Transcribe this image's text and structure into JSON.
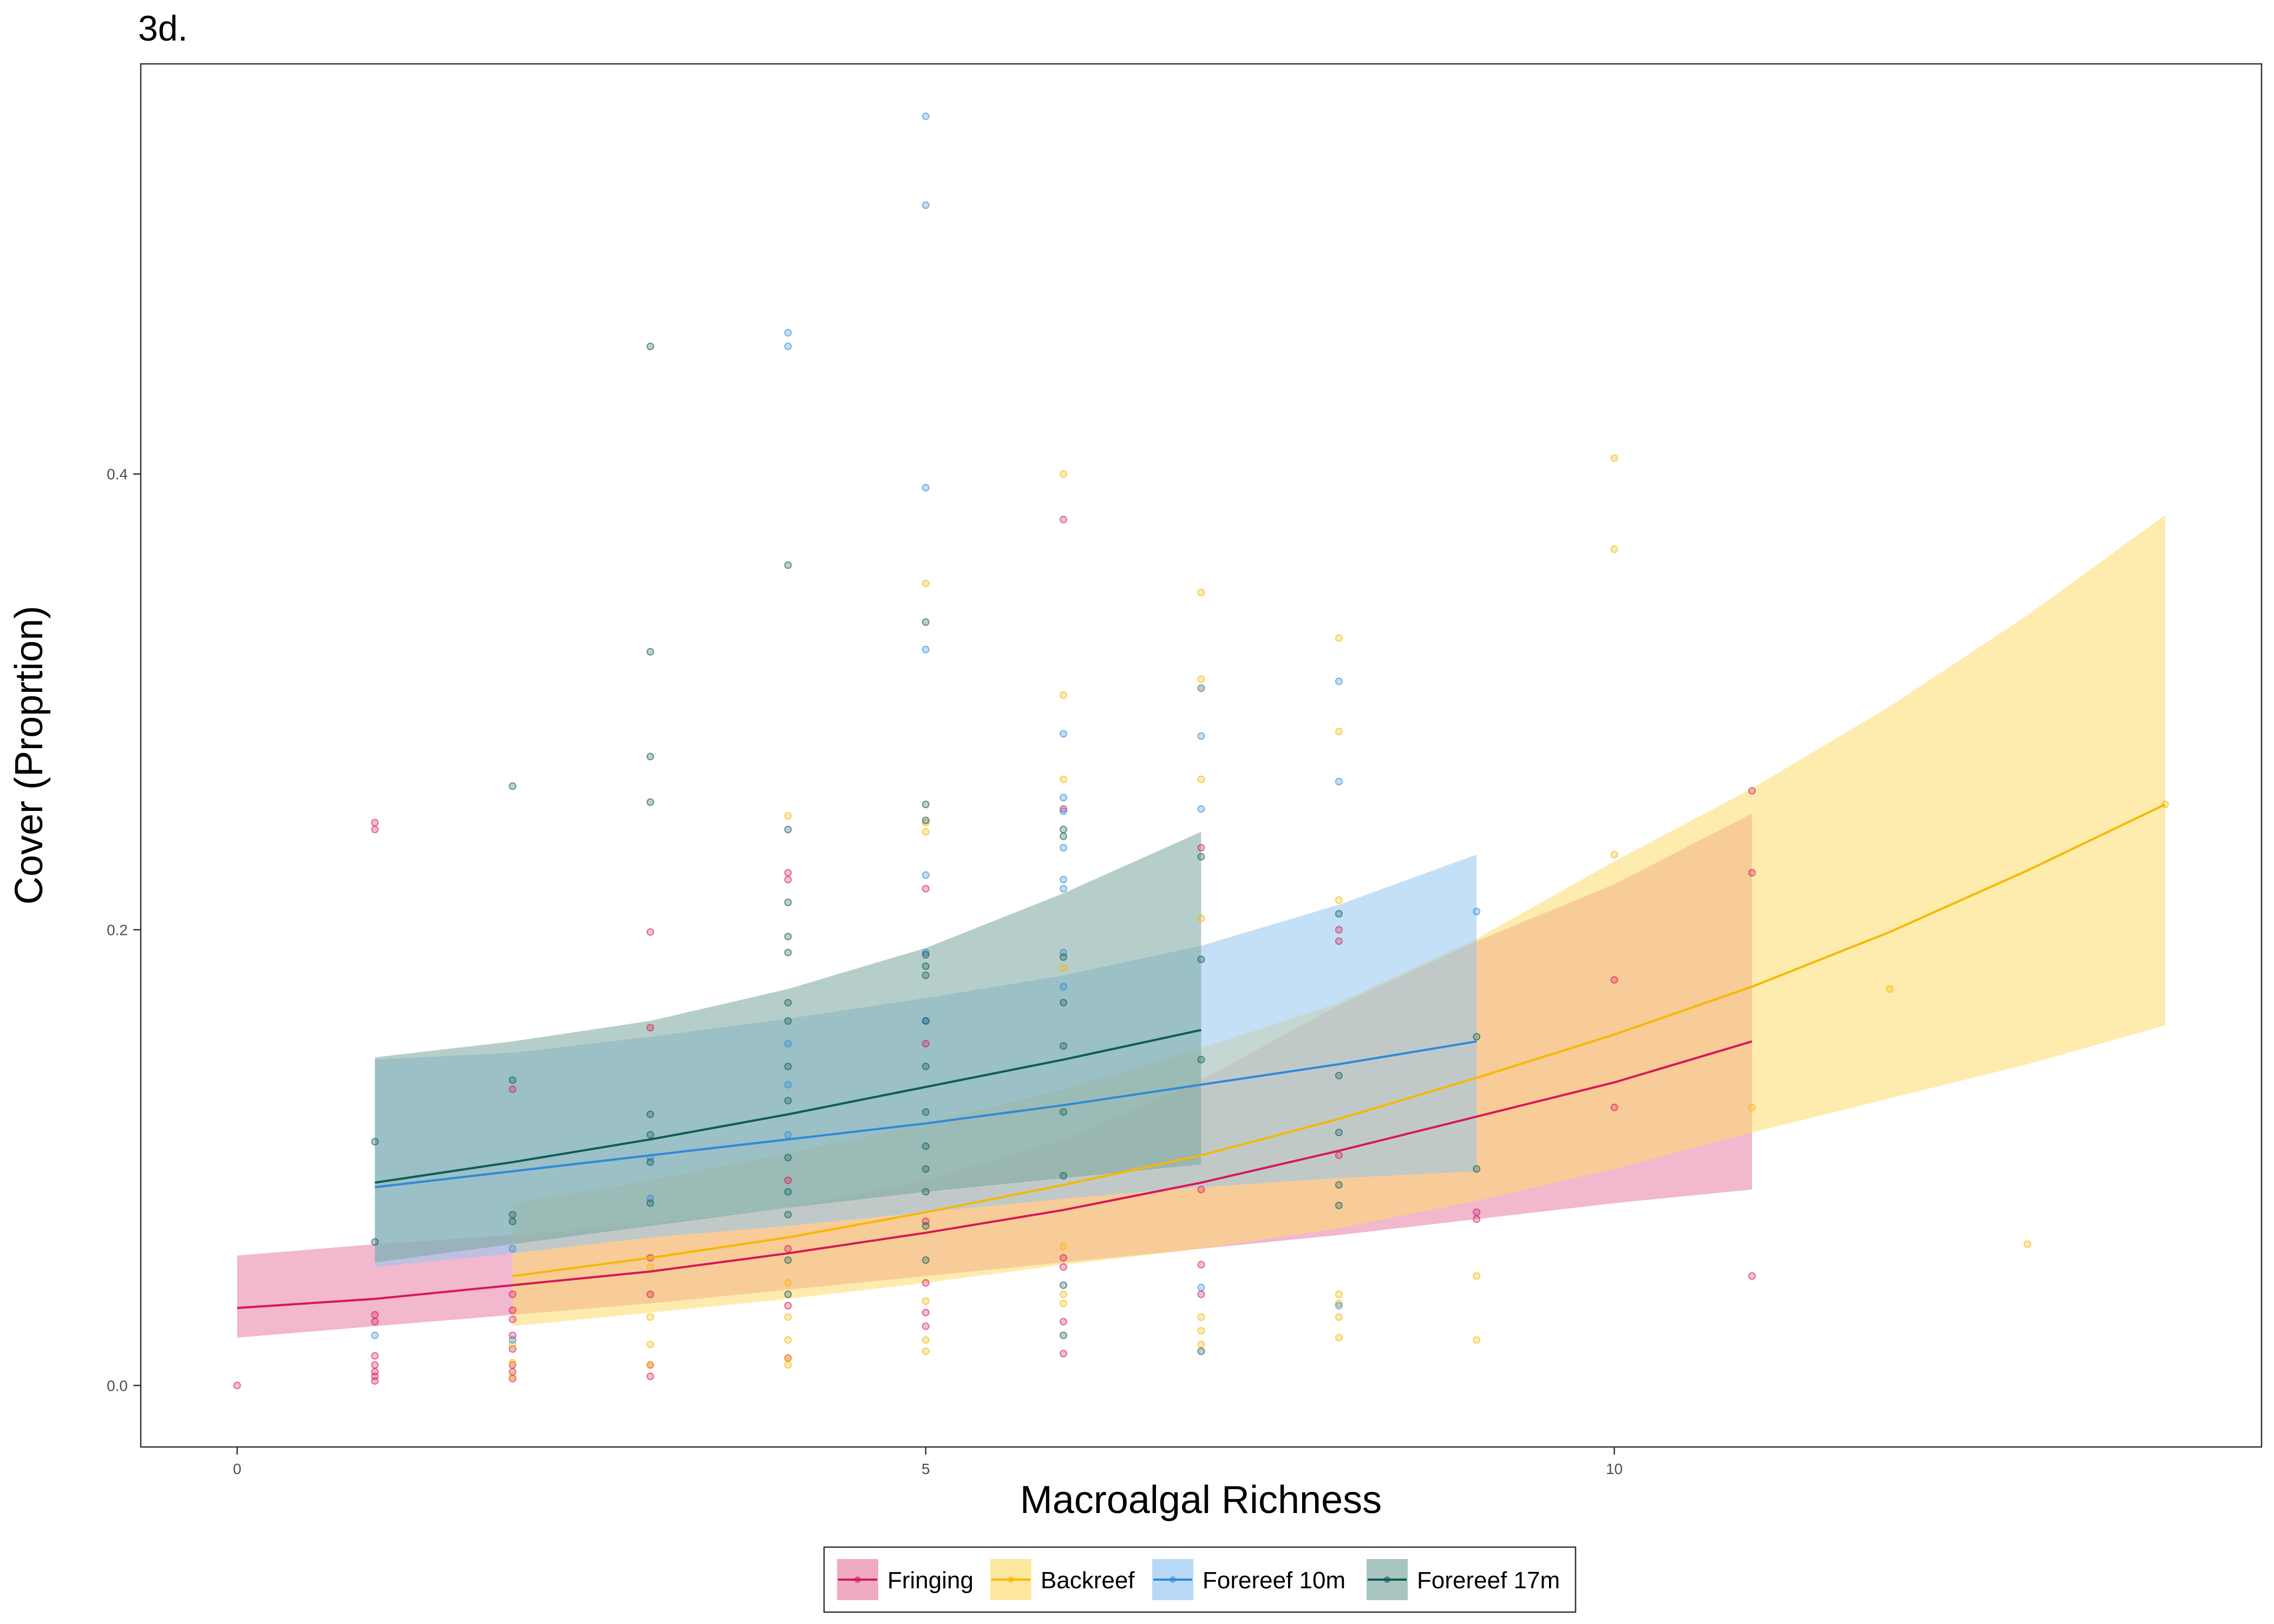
{
  "chart_data": {
    "type": "line",
    "title": "3d.",
    "xlabel": "Macroalgal Richness",
    "ylabel": "Cover (Proprtion)",
    "xlim": [
      -0.7,
      14.7
    ],
    "ylim": [
      -0.027,
      0.58
    ],
    "x_ticks": [
      0,
      5,
      10
    ],
    "x_tick_labels": [
      "0",
      "5",
      "10"
    ],
    "y_ticks": [
      0.0,
      0.2,
      0.4
    ],
    "y_tick_labels": [
      "0.0",
      "0.2",
      "0.4"
    ],
    "grid": false,
    "legend_position": "bottom",
    "series": [
      {
        "name": "Fringing",
        "color": "#d6185a",
        "band_color": "#e67ea5",
        "x": [
          0,
          1,
          2,
          3,
          4,
          5,
          6,
          7,
          8,
          9,
          10,
          11
        ],
        "fit": [
          0.034,
          0.038,
          0.044,
          0.05,
          0.058,
          0.067,
          0.077,
          0.089,
          0.103,
          0.118,
          0.133,
          0.151
        ],
        "lower": [
          0.021,
          0.026,
          0.031,
          0.036,
          0.042,
          0.048,
          0.054,
          0.06,
          0.066,
          0.073,
          0.08,
          0.086
        ],
        "upper": [
          0.057,
          0.062,
          0.066,
          0.071,
          0.078,
          0.09,
          0.108,
          0.134,
          0.167,
          0.195,
          0.22,
          0.251
        ],
        "points": [
          [
            0,
            0.0
          ],
          [
            1,
            0.002
          ],
          [
            1,
            0.004
          ],
          [
            1,
            0.006
          ],
          [
            1,
            0.009
          ],
          [
            1,
            0.013
          ],
          [
            1,
            0.028
          ],
          [
            1,
            0.031
          ],
          [
            1,
            0.247
          ],
          [
            1,
            0.244
          ],
          [
            2,
            0.003
          ],
          [
            2,
            0.006
          ],
          [
            2,
            0.009
          ],
          [
            2,
            0.016
          ],
          [
            2,
            0.022
          ],
          [
            2,
            0.029
          ],
          [
            2,
            0.033
          ],
          [
            2,
            0.04
          ],
          [
            2,
            0.13
          ],
          [
            3,
            0.004
          ],
          [
            3,
            0.009
          ],
          [
            3,
            0.04
          ],
          [
            3,
            0.056
          ],
          [
            3,
            0.199
          ],
          [
            3,
            0.157
          ],
          [
            4,
            0.012
          ],
          [
            4,
            0.035
          ],
          [
            4,
            0.06
          ],
          [
            4,
            0.225
          ],
          [
            4,
            0.222
          ],
          [
            4,
            0.09
          ],
          [
            5,
            0.026
          ],
          [
            5,
            0.032
          ],
          [
            5,
            0.045
          ],
          [
            5,
            0.072
          ],
          [
            5,
            0.218
          ],
          [
            5,
            0.15
          ],
          [
            6,
            0.014
          ],
          [
            6,
            0.028
          ],
          [
            6,
            0.052
          ],
          [
            6,
            0.056
          ],
          [
            6,
            0.38
          ],
          [
            6,
            0.253
          ],
          [
            7,
            0.04
          ],
          [
            7,
            0.053
          ],
          [
            7,
            0.086
          ],
          [
            7,
            0.236
          ],
          [
            8,
            0.195
          ],
          [
            8,
            0.2
          ],
          [
            8,
            0.101
          ],
          [
            9,
            0.073
          ],
          [
            9,
            0.076
          ],
          [
            10,
            0.122
          ],
          [
            10,
            0.178
          ],
          [
            11,
            0.048
          ],
          [
            11,
            0.225
          ],
          [
            11,
            0.261
          ]
        ]
      },
      {
        "name": "Backreef",
        "color": "#f5b800",
        "band_color": "#fddc6c",
        "x": [
          2,
          3,
          4,
          5,
          6,
          7,
          8,
          9,
          10,
          11,
          12,
          13,
          14
        ],
        "fit": [
          0.048,
          0.056,
          0.065,
          0.076,
          0.088,
          0.101,
          0.117,
          0.135,
          0.154,
          0.175,
          0.199,
          0.226,
          0.255
        ],
        "lower": [
          0.026,
          0.032,
          0.038,
          0.045,
          0.053,
          0.06,
          0.069,
          0.081,
          0.095,
          0.111,
          0.126,
          0.141,
          0.158
        ],
        "upper": [
          0.08,
          0.09,
          0.102,
          0.115,
          0.13,
          0.148,
          0.168,
          0.196,
          0.23,
          0.262,
          0.298,
          0.338,
          0.382
        ],
        "points": [
          [
            2,
            0.004
          ],
          [
            2,
            0.01
          ],
          [
            2,
            0.018
          ],
          [
            3,
            0.009
          ],
          [
            3,
            0.018
          ],
          [
            3,
            0.03
          ],
          [
            3,
            0.052
          ],
          [
            4,
            0.009
          ],
          [
            4,
            0.012
          ],
          [
            4,
            0.02
          ],
          [
            4,
            0.03
          ],
          [
            4,
            0.045
          ],
          [
            4,
            0.25
          ],
          [
            5,
            0.015
          ],
          [
            5,
            0.02
          ],
          [
            5,
            0.037
          ],
          [
            5,
            0.352
          ],
          [
            5,
            0.247
          ],
          [
            5,
            0.243
          ],
          [
            6,
            0.036
          ],
          [
            6,
            0.04
          ],
          [
            6,
            0.061
          ],
          [
            6,
            0.4
          ],
          [
            6,
            0.303
          ],
          [
            6,
            0.266
          ],
          [
            6,
            0.183
          ],
          [
            7,
            0.018
          ],
          [
            7,
            0.024
          ],
          [
            7,
            0.03
          ],
          [
            7,
            0.348
          ],
          [
            7,
            0.31
          ],
          [
            7,
            0.306
          ],
          [
            7,
            0.266
          ],
          [
            7,
            0.205
          ],
          [
            8,
            0.021
          ],
          [
            8,
            0.03
          ],
          [
            8,
            0.036
          ],
          [
            8,
            0.04
          ],
          [
            8,
            0.328
          ],
          [
            8,
            0.287
          ],
          [
            8,
            0.213
          ],
          [
            9,
            0.02
          ],
          [
            9,
            0.048
          ],
          [
            10,
            0.407
          ],
          [
            10,
            0.367
          ],
          [
            10,
            0.233
          ],
          [
            11,
            0.122
          ],
          [
            12,
            0.174
          ],
          [
            13,
            0.062
          ],
          [
            14,
            0.255
          ]
        ]
      },
      {
        "name": "Forereef 10m",
        "color": "#2f8ad8",
        "band_color": "#93c6f1",
        "x": [
          1,
          2,
          3,
          4,
          5,
          6,
          7,
          8,
          9
        ],
        "fit": [
          0.087,
          0.094,
          0.101,
          0.108,
          0.115,
          0.123,
          0.132,
          0.141,
          0.151
        ],
        "lower": [
          0.052,
          0.058,
          0.065,
          0.07,
          0.076,
          0.082,
          0.087,
          0.091,
          0.094
        ],
        "upper": [
          0.143,
          0.146,
          0.153,
          0.161,
          0.17,
          0.18,
          0.193,
          0.211,
          0.233
        ],
        "points": [
          [
            1,
            0.022
          ],
          [
            2,
            0.02
          ],
          [
            2,
            0.06
          ],
          [
            3,
            0.082
          ],
          [
            3,
            0.1
          ],
          [
            4,
            0.462
          ],
          [
            4,
            0.456
          ],
          [
            4,
            0.15
          ],
          [
            4,
            0.132
          ],
          [
            4,
            0.11
          ],
          [
            5,
            0.557
          ],
          [
            5,
            0.518
          ],
          [
            5,
            0.394
          ],
          [
            5,
            0.323
          ],
          [
            5,
            0.224
          ],
          [
            5,
            0.19
          ],
          [
            5,
            0.16
          ],
          [
            6,
            0.286
          ],
          [
            6,
            0.258
          ],
          [
            6,
            0.252
          ],
          [
            6,
            0.236
          ],
          [
            6,
            0.222
          ],
          [
            6,
            0.218
          ],
          [
            6,
            0.19
          ],
          [
            6,
            0.175
          ],
          [
            7,
            0.306
          ],
          [
            7,
            0.285
          ],
          [
            7,
            0.253
          ],
          [
            7,
            0.043
          ],
          [
            8,
            0.309
          ],
          [
            8,
            0.265
          ],
          [
            8,
            0.035
          ],
          [
            9,
            0.208
          ]
        ]
      },
      {
        "name": "Forereef 17m",
        "color": "#0d5c55",
        "band_color": "#7aa69e",
        "x": [
          1,
          2,
          3,
          4,
          5,
          6,
          7
        ],
        "fit": [
          0.089,
          0.098,
          0.108,
          0.119,
          0.131,
          0.143,
          0.156
        ],
        "lower": [
          0.054,
          0.062,
          0.07,
          0.078,
          0.085,
          0.091,
          0.097
        ],
        "upper": [
          0.144,
          0.151,
          0.16,
          0.174,
          0.192,
          0.216,
          0.243
        ],
        "points": [
          [
            1,
            0.107
          ],
          [
            1,
            0.063
          ],
          [
            2,
            0.263
          ],
          [
            2,
            0.134
          ],
          [
            2,
            0.075
          ],
          [
            2,
            0.072
          ],
          [
            3,
            0.456
          ],
          [
            3,
            0.322
          ],
          [
            3,
            0.276
          ],
          [
            3,
            0.256
          ],
          [
            3,
            0.119
          ],
          [
            3,
            0.11
          ],
          [
            3,
            0.098
          ],
          [
            3,
            0.08
          ],
          [
            4,
            0.36
          ],
          [
            4,
            0.244
          ],
          [
            4,
            0.212
          ],
          [
            4,
            0.197
          ],
          [
            4,
            0.19
          ],
          [
            4,
            0.168
          ],
          [
            4,
            0.16
          ],
          [
            4,
            0.14
          ],
          [
            4,
            0.125
          ],
          [
            4,
            0.1
          ],
          [
            4,
            0.085
          ],
          [
            4,
            0.075
          ],
          [
            4,
            0.055
          ],
          [
            4,
            0.04
          ],
          [
            5,
            0.335
          ],
          [
            5,
            0.255
          ],
          [
            5,
            0.248
          ],
          [
            5,
            0.189
          ],
          [
            5,
            0.184
          ],
          [
            5,
            0.18
          ],
          [
            5,
            0.16
          ],
          [
            5,
            0.14
          ],
          [
            5,
            0.12
          ],
          [
            5,
            0.105
          ],
          [
            5,
            0.095
          ],
          [
            5,
            0.085
          ],
          [
            5,
            0.07
          ],
          [
            5,
            0.055
          ],
          [
            6,
            0.244
          ],
          [
            6,
            0.241
          ],
          [
            6,
            0.188
          ],
          [
            6,
            0.168
          ],
          [
            6,
            0.149
          ],
          [
            6,
            0.12
          ],
          [
            6,
            0.092
          ],
          [
            6,
            0.044
          ],
          [
            6,
            0.022
          ],
          [
            7,
            0.232
          ],
          [
            7,
            0.187
          ],
          [
            7,
            0.143
          ],
          [
            7,
            0.015
          ],
          [
            8,
            0.207
          ],
          [
            8,
            0.136
          ],
          [
            8,
            0.111
          ],
          [
            8,
            0.088
          ],
          [
            8,
            0.079
          ],
          [
            9,
            0.153
          ],
          [
            9,
            0.095
          ]
        ]
      }
    ]
  }
}
